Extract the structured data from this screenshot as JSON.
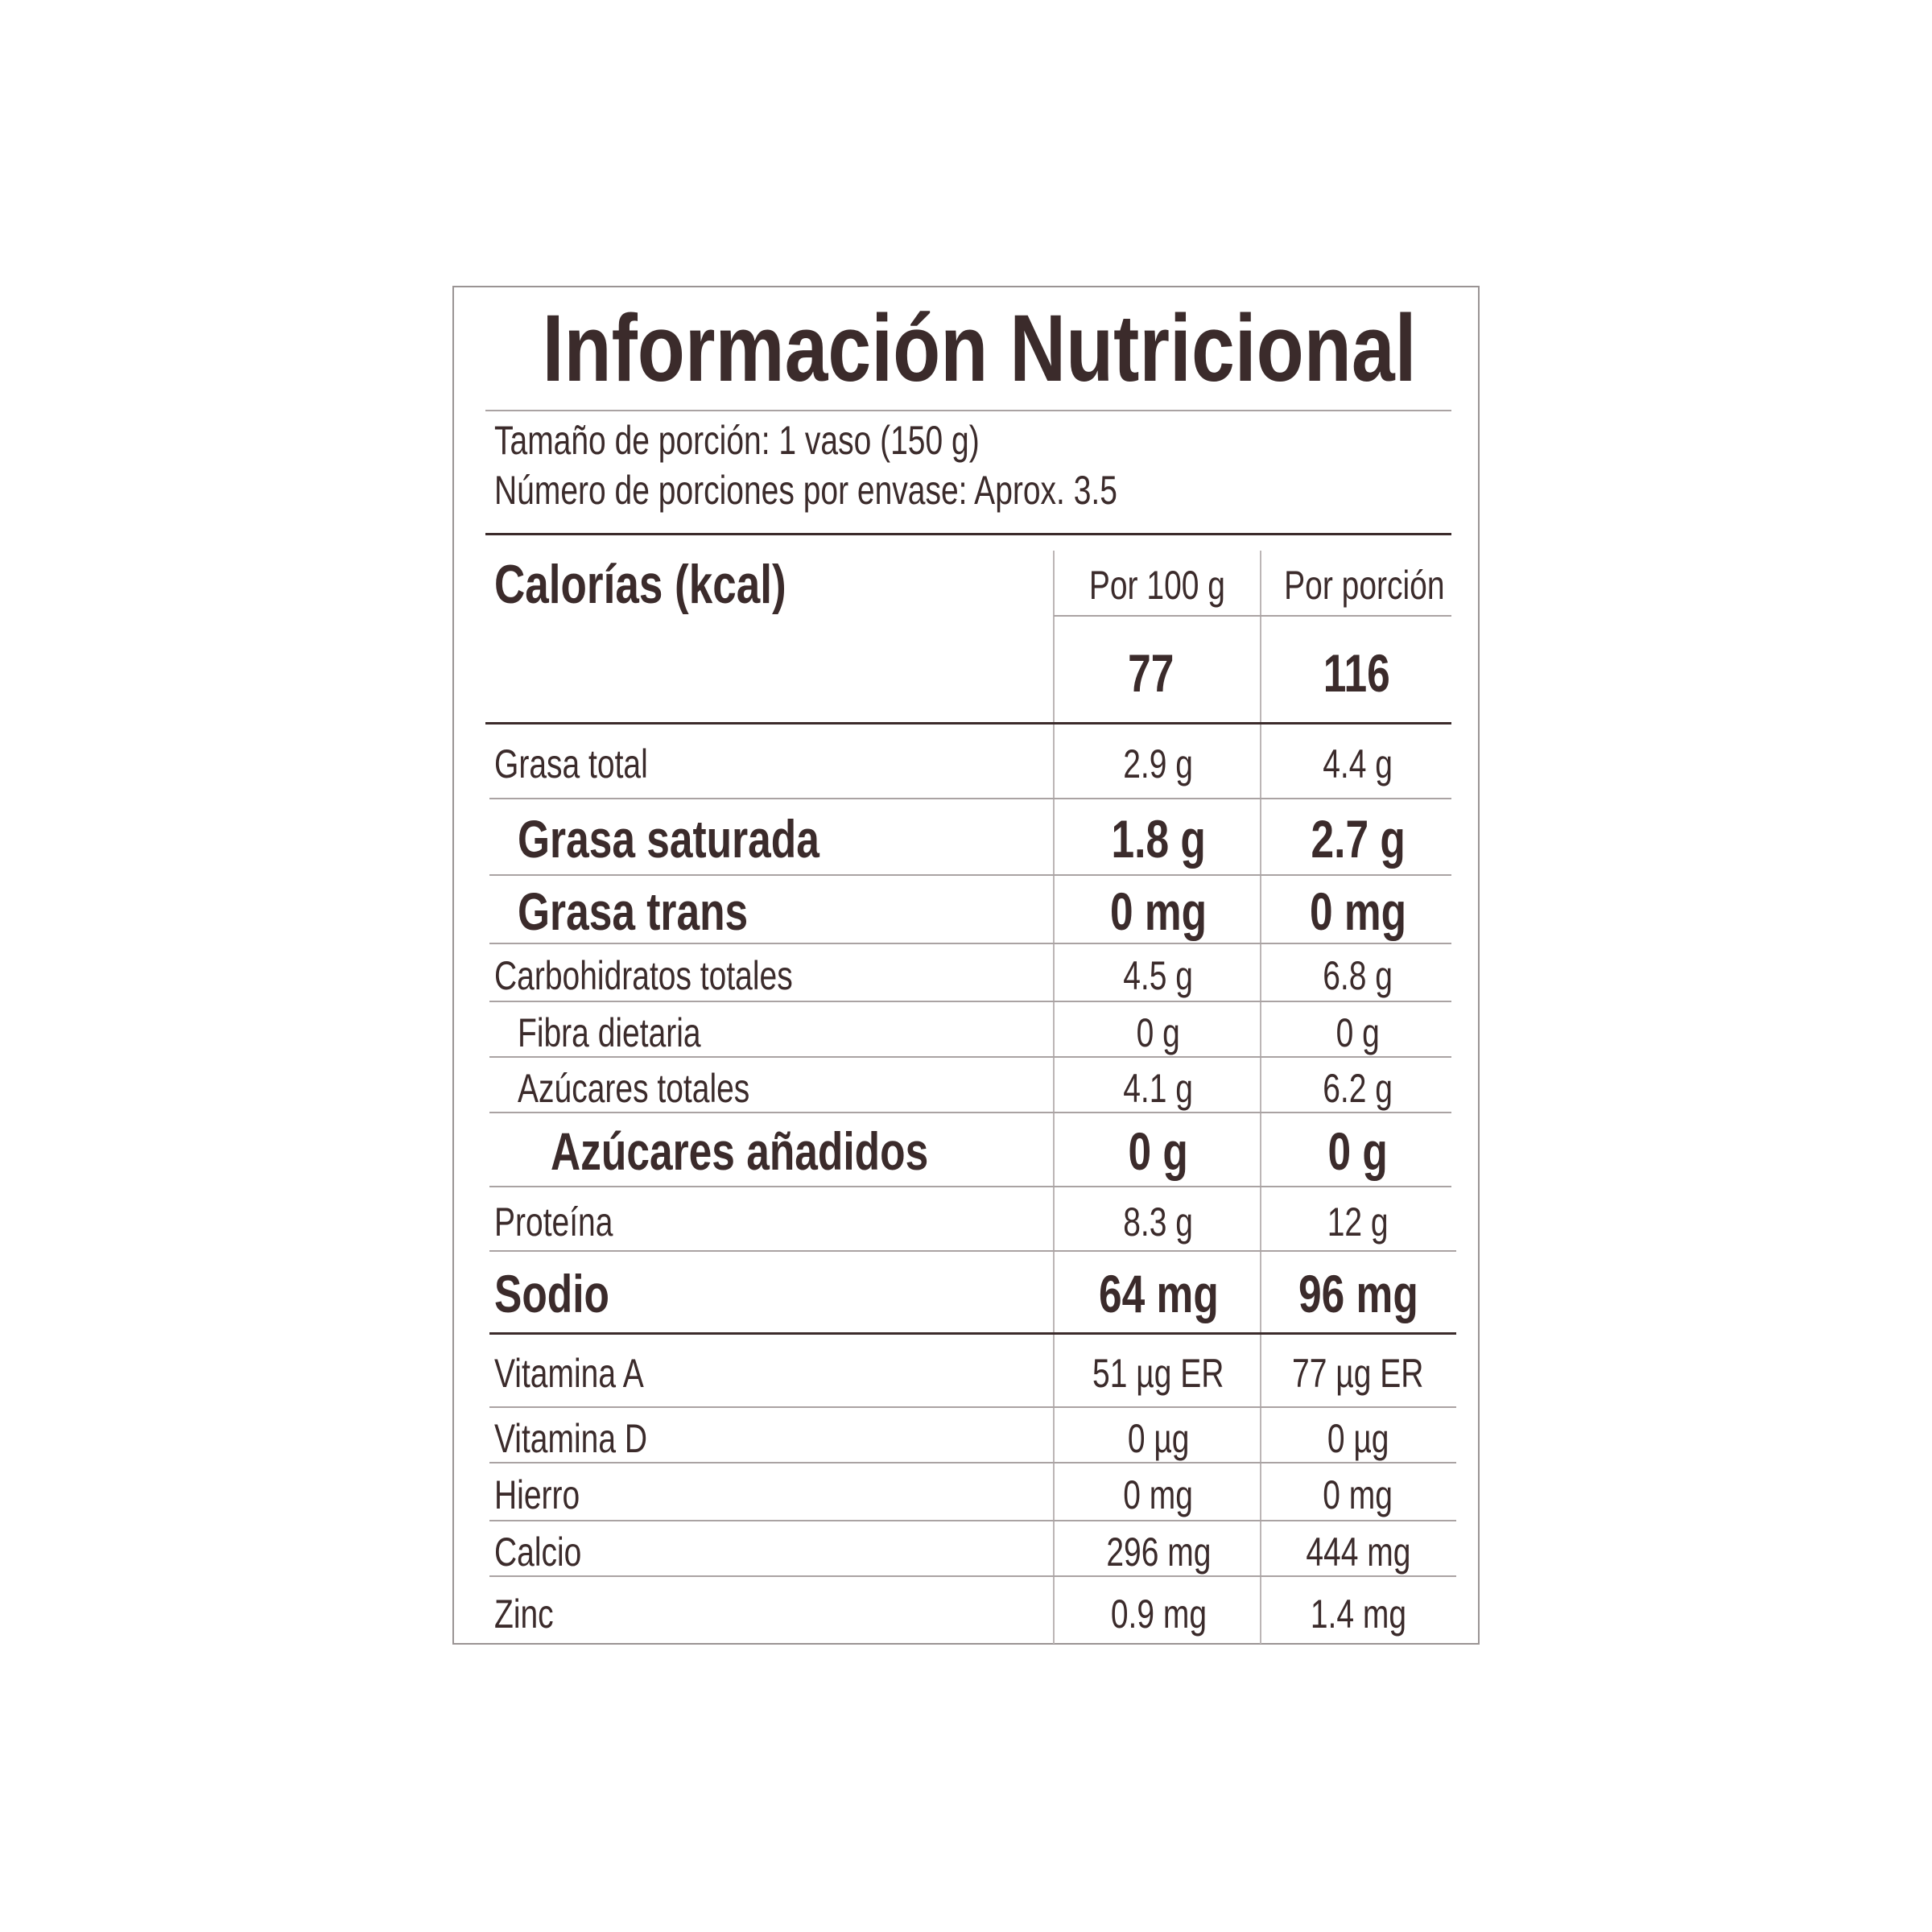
{
  "title": "Información Nutricional",
  "serving_size": "Tamaño de porción: 1 vaso (150 g)",
  "servings_per_container": "Número de porciones por envase: Aprox. 3.5",
  "calories": {
    "label": "Calorías (kcal)",
    "col1_header": "Por 100 g",
    "col2_header": "Por porción",
    "per_100g": "77",
    "per_serving": "116"
  },
  "rows": [
    {
      "label": "Grasa total",
      "per_100g": "2.9 g",
      "per_serving": "4.4 g",
      "bold": false,
      "indent": 0
    },
    {
      "label": "Grasa saturada",
      "per_100g": "1.8 g",
      "per_serving": "2.7 g",
      "bold": true,
      "indent": 1
    },
    {
      "label": "Grasa trans",
      "per_100g": "0 mg",
      "per_serving": "0 mg",
      "bold": true,
      "indent": 1
    },
    {
      "label": "Carbohidratos totales",
      "per_100g": "4.5 g",
      "per_serving": "6.8 g",
      "bold": false,
      "indent": 0
    },
    {
      "label": "Fibra dietaria",
      "per_100g": "0 g",
      "per_serving": "0 g",
      "bold": false,
      "indent": 1
    },
    {
      "label": "Azúcares totales",
      "per_100g": "4.1 g",
      "per_serving": "6.2 g",
      "bold": false,
      "indent": 1
    },
    {
      "label": "Azúcares añadidos",
      "per_100g": "0 g",
      "per_serving": "0 g",
      "bold": true,
      "indent": 2
    },
    {
      "label": "Proteína",
      "per_100g": "8.3 g",
      "per_serving": "12 g",
      "bold": false,
      "indent": 0
    },
    {
      "label": "Sodio",
      "per_100g": "64 mg",
      "per_serving": "96 mg",
      "bold": true,
      "indent": 0
    },
    {
      "label": "Vitamina A",
      "per_100g": "51 µg ER",
      "per_serving": "77 µg ER",
      "bold": false,
      "indent": 0
    },
    {
      "label": "Vitamina D",
      "per_100g": "0 µg",
      "per_serving": "0 µg",
      "bold": false,
      "indent": 0
    },
    {
      "label": "Hierro",
      "per_100g": "0 mg",
      "per_serving": "0 mg",
      "bold": false,
      "indent": 0
    },
    {
      "label": "Calcio",
      "per_100g": "296 mg",
      "per_serving": "444 mg",
      "bold": false,
      "indent": 0
    },
    {
      "label": "Zinc",
      "per_100g": "0.9 mg",
      "per_serving": "1.4 mg",
      "bold": false,
      "indent": 0
    }
  ],
  "colors": {
    "text": "#3b2b2b",
    "rule_thin": "#aaa3a3",
    "rule_thick": "#3b2b2b"
  }
}
